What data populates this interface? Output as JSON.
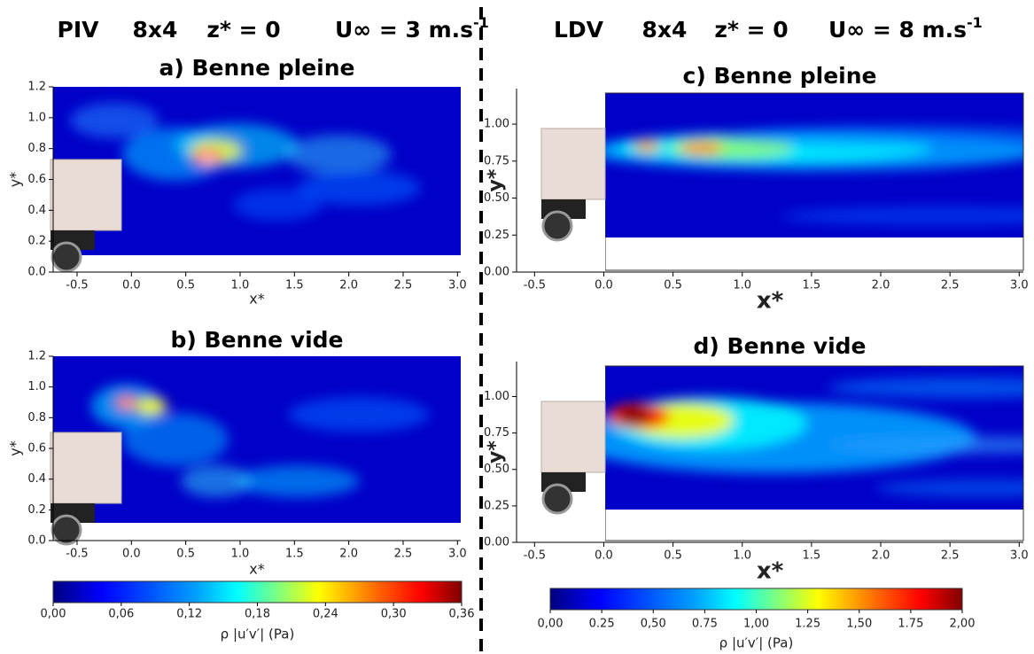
{
  "headers": [
    {
      "method": "PIV",
      "model": "8x4",
      "z": "z* = 0",
      "speed": "U∞ = 3 m.s",
      "speed_exp": "-1"
    },
    {
      "method": "LDV",
      "model": "8x4",
      "z": "z* = 0",
      "speed": "U∞ = 8 m.s",
      "speed_exp": "-1"
    }
  ],
  "chart_data": [
    {
      "type": "heatmap",
      "title": "a) Benne pleine",
      "xlabel": "x*",
      "ylabel": "y*",
      "xlim": [
        -0.72,
        3.03
      ],
      "ylim": [
        0,
        1.2
      ],
      "xticks": [
        -0.5,
        {
          "value": 0,
          "label": "0.0"
        },
        0.5,
        {
          "value": 1,
          "label": "1.0"
        },
        1.5,
        {
          "value": 2,
          "label": "2.0"
        },
        2.5,
        {
          "value": 3,
          "label": "3.0"
        }
      ],
      "yticks": [
        {
          "value": 0,
          "label": "0.0"
        },
        0.2,
        0.4,
        0.6,
        0.8,
        {
          "value": 1,
          "label": "1.0"
        },
        1.2
      ]
    },
    {
      "type": "heatmap",
      "title": "b) Benne vide",
      "xlabel": "x*",
      "ylabel": "y*",
      "xlim": [
        -0.72,
        3.03
      ],
      "ylim": [
        0,
        1.2
      ],
      "xticks": [
        -0.5,
        {
          "value": 0,
          "label": "0.0"
        },
        0.5,
        {
          "value": 1,
          "label": "1.0"
        },
        1.5,
        {
          "value": 2,
          "label": "2.0"
        },
        2.5,
        {
          "value": 3,
          "label": "3.0"
        }
      ],
      "yticks": [
        {
          "value": 0,
          "label": "0.0"
        },
        0.2,
        0.4,
        0.6,
        0.8,
        {
          "value": 1,
          "label": "1.0"
        },
        1.2
      ]
    },
    {
      "type": "heatmap",
      "title": "c) Benne pleine",
      "xlabel": "x*",
      "ylabel": "y*",
      "xlim": [
        -0.63,
        3.03
      ],
      "ylim": [
        0,
        1.24
      ],
      "xticks": [
        -0.5,
        {
          "value": 0,
          "label": "0.0"
        },
        0.5,
        {
          "value": 1,
          "label": "1.0"
        },
        1.5,
        {
          "value": 2,
          "label": "2.0"
        },
        2.5,
        {
          "value": 3,
          "label": "3.0"
        }
      ],
      "yticks": [
        {
          "value": 0,
          "label": "0.00"
        },
        0.25,
        {
          "value": 0.5,
          "label": "0.50"
        },
        0.75,
        {
          "value": 1,
          "label": "1.00"
        }
      ]
    },
    {
      "type": "heatmap",
      "title": "d) Benne vide",
      "xlabel": "x*",
      "ylabel": "y*",
      "xlim": [
        -0.63,
        3.03
      ],
      "ylim": [
        0,
        1.24
      ],
      "xticks": [
        -0.5,
        {
          "value": 0,
          "label": "0.0"
        },
        0.5,
        {
          "value": 1,
          "label": "1.0"
        },
        1.5,
        {
          "value": 2,
          "label": "2.0"
        },
        2.5,
        {
          "value": 3,
          "label": "3.0"
        }
      ],
      "yticks": [
        {
          "value": 0,
          "label": "0.00"
        },
        0.25,
        {
          "value": 0.5,
          "label": "0.50"
        },
        0.75,
        {
          "value": 1,
          "label": "1.00"
        }
      ]
    }
  ],
  "colorbars": [
    {
      "lim": [
        0,
        0.36
      ],
      "label": "ρ |u′v′| (Pa)",
      "ticks": [
        {
          "value": 0,
          "label": "0,00"
        },
        {
          "value": 0.06,
          "label": "0,06"
        },
        {
          "value": 0.12,
          "label": "0,12"
        },
        {
          "value": 0.18,
          "label": "0,18"
        },
        {
          "value": 0.24,
          "label": "0,24"
        },
        {
          "value": 0.3,
          "label": "0,30"
        },
        {
          "value": 0.36,
          "label": "0,36"
        }
      ]
    },
    {
      "lim": [
        0,
        2
      ],
      "label": "ρ |u′v′| (Pa)",
      "ticks": [
        {
          "value": 0,
          "label": "0,00"
        },
        0.25,
        {
          "value": 0.5,
          "label": "0,50"
        },
        0.75,
        {
          "value": 1,
          "label": "1,00"
        },
        1.25,
        {
          "value": 1.5,
          "label": "1,50"
        },
        1.75,
        {
          "value": 2,
          "label": "2,00"
        }
      ]
    }
  ]
}
